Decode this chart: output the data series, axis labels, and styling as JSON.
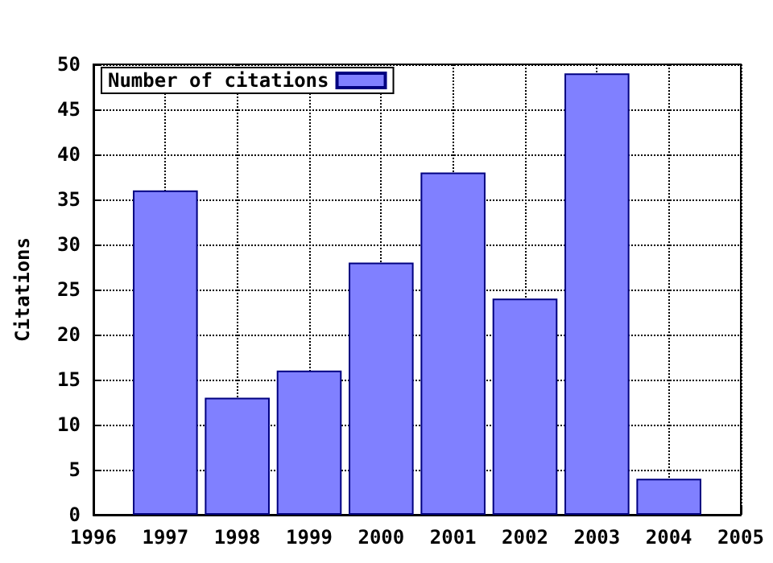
{
  "chart_data": {
    "type": "bar",
    "ylabel": "Citations",
    "x": [
      1997,
      1998,
      1999,
      2000,
      2001,
      2002,
      2003,
      2004
    ],
    "series": [
      {
        "name": "Number of citations",
        "color": "#8080ff",
        "values": [
          36,
          13,
          16,
          28,
          38,
          24,
          49,
          4
        ]
      }
    ],
    "xlim": [
      1996,
      2005
    ],
    "xticks": [
      1996,
      1997,
      1998,
      1999,
      2000,
      2001,
      2002,
      2003,
      2004,
      2005
    ],
    "ylim": [
      0,
      50
    ],
    "yticks": [
      0,
      5,
      10,
      15,
      20,
      25,
      30,
      35,
      40,
      45,
      50
    ],
    "grid": true,
    "legend": "top left",
    "line_style": "dotted"
  }
}
